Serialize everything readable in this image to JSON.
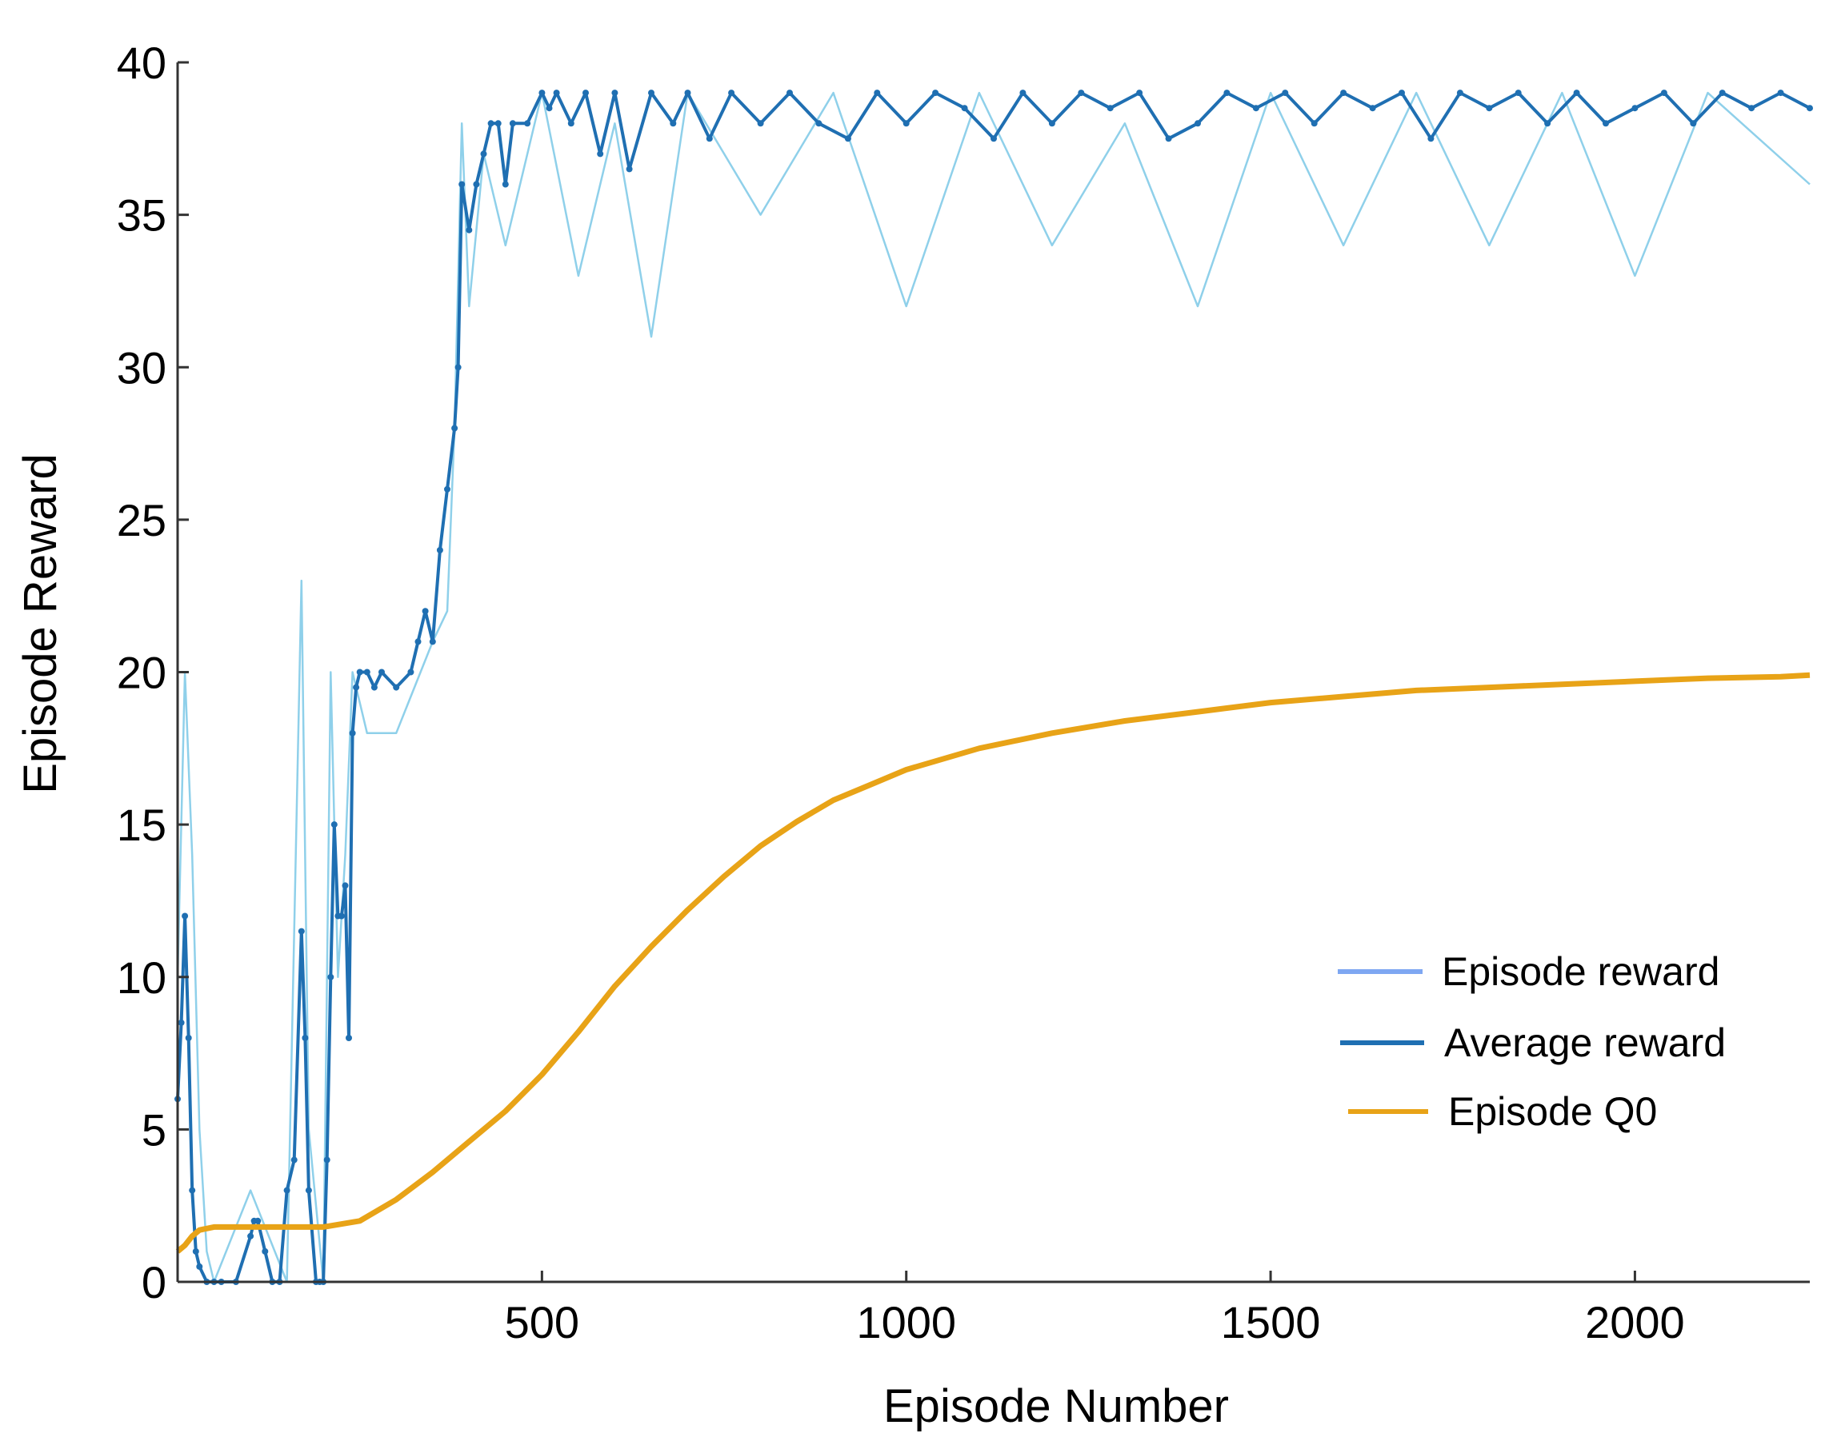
{
  "chart_data": {
    "type": "line",
    "title": "",
    "xlabel": "Episode Number",
    "ylabel": "Episode Reward",
    "xlim": [
      0,
      2240
    ],
    "ylim": [
      0,
      40
    ],
    "x_ticks": [
      500,
      1000,
      1500,
      2000
    ],
    "y_ticks": [
      0,
      5,
      10,
      15,
      20,
      25,
      30,
      35,
      40
    ],
    "grid": false,
    "legend_position": "bottom-right",
    "colors": {
      "episode_reward": "#8fd0ea",
      "average_reward": "#1f6fb2",
      "episode_q0": "#e8a317",
      "legend_episode_reward": "#7ea7f2",
      "axis": "#333333"
    },
    "series": [
      {
        "name": "Episode reward",
        "key": "episode_reward",
        "x": [
          0,
          10,
          20,
          30,
          40,
          50,
          100,
          150,
          170,
          180,
          200,
          210,
          220,
          230,
          240,
          260,
          300,
          350,
          370,
          380,
          390,
          400,
          420,
          450,
          500,
          550,
          600,
          650,
          700,
          800,
          900,
          1000,
          1100,
          1200,
          1300,
          1400,
          1500,
          1600,
          1700,
          1800,
          1900,
          2000,
          2100,
          2240
        ],
        "values": [
          10,
          20,
          14,
          5,
          1,
          0,
          3,
          0,
          23,
          5,
          0,
          20,
          10,
          14,
          20,
          18,
          18,
          21,
          22,
          28,
          38,
          32,
          37,
          34,
          39,
          33,
          38,
          31,
          39,
          35,
          39,
          32,
          39,
          34,
          38,
          32,
          39,
          34,
          39,
          34,
          39,
          33,
          39,
          36
        ]
      },
      {
        "name": "Average reward",
        "key": "average_reward",
        "x": [
          0,
          5,
          10,
          15,
          20,
          25,
          30,
          40,
          50,
          60,
          80,
          100,
          105,
          110,
          120,
          130,
          140,
          150,
          160,
          170,
          175,
          180,
          190,
          195,
          200,
          205,
          210,
          215,
          220,
          225,
          230,
          235,
          240,
          245,
          250,
          260,
          270,
          280,
          300,
          320,
          330,
          340,
          350,
          360,
          370,
          380,
          385,
          390,
          400,
          410,
          420,
          430,
          440,
          450,
          460,
          480,
          500,
          510,
          520,
          540,
          560,
          580,
          600,
          620,
          650,
          680,
          700,
          730,
          760,
          800,
          840,
          880,
          920,
          960,
          1000,
          1040,
          1080,
          1120,
          1160,
          1200,
          1240,
          1280,
          1320,
          1360,
          1400,
          1440,
          1480,
          1520,
          1560,
          1600,
          1640,
          1680,
          1720,
          1760,
          1800,
          1840,
          1880,
          1920,
          1960,
          2000,
          2040,
          2080,
          2120,
          2160,
          2200,
          2240
        ],
        "values": [
          6,
          8.5,
          12,
          8,
          3,
          1,
          0.5,
          0,
          0,
          0,
          0,
          1.5,
          2,
          2,
          1,
          0,
          0,
          3,
          4,
          11.5,
          8,
          3,
          0,
          0,
          0,
          4,
          10,
          15,
          12,
          12,
          13,
          8,
          18,
          19.5,
          20,
          20,
          19.5,
          20,
          19.5,
          20,
          21,
          22,
          21,
          24,
          26,
          28,
          30,
          36,
          34.5,
          36,
          37,
          38,
          38,
          36,
          38,
          38,
          39,
          38.5,
          39,
          38,
          39,
          37,
          39,
          36.5,
          39,
          38,
          39,
          37.5,
          39,
          38,
          39,
          38,
          37.5,
          39,
          38,
          39,
          38.5,
          37.5,
          39,
          38,
          39,
          38.5,
          39,
          37.5,
          38,
          39,
          38.5,
          39,
          38,
          39,
          38.5,
          39,
          37.5,
          39,
          38.5,
          39,
          38,
          39,
          38,
          38.5,
          39,
          38,
          39,
          38.5,
          39,
          38.5
        ]
      },
      {
        "name": "Episode Q0",
        "key": "episode_q0",
        "x": [
          0,
          10,
          20,
          30,
          50,
          100,
          150,
          200,
          250,
          300,
          350,
          400,
          450,
          500,
          550,
          600,
          650,
          700,
          750,
          800,
          850,
          900,
          950,
          1000,
          1100,
          1200,
          1300,
          1400,
          1500,
          1600,
          1700,
          1800,
          1900,
          2000,
          2100,
          2200,
          2240
        ],
        "values": [
          1,
          1.2,
          1.5,
          1.7,
          1.8,
          1.8,
          1.8,
          1.8,
          2.0,
          2.7,
          3.6,
          4.6,
          5.6,
          6.8,
          8.2,
          9.7,
          11.0,
          12.2,
          13.3,
          14.3,
          15.1,
          15.8,
          16.3,
          16.8,
          17.5,
          18.0,
          18.4,
          18.7,
          19.0,
          19.2,
          19.4,
          19.5,
          19.6,
          19.7,
          19.8,
          19.85,
          19.9
        ]
      }
    ],
    "legend": [
      "Episode reward",
      "Average reward",
      "Episode Q0"
    ]
  }
}
